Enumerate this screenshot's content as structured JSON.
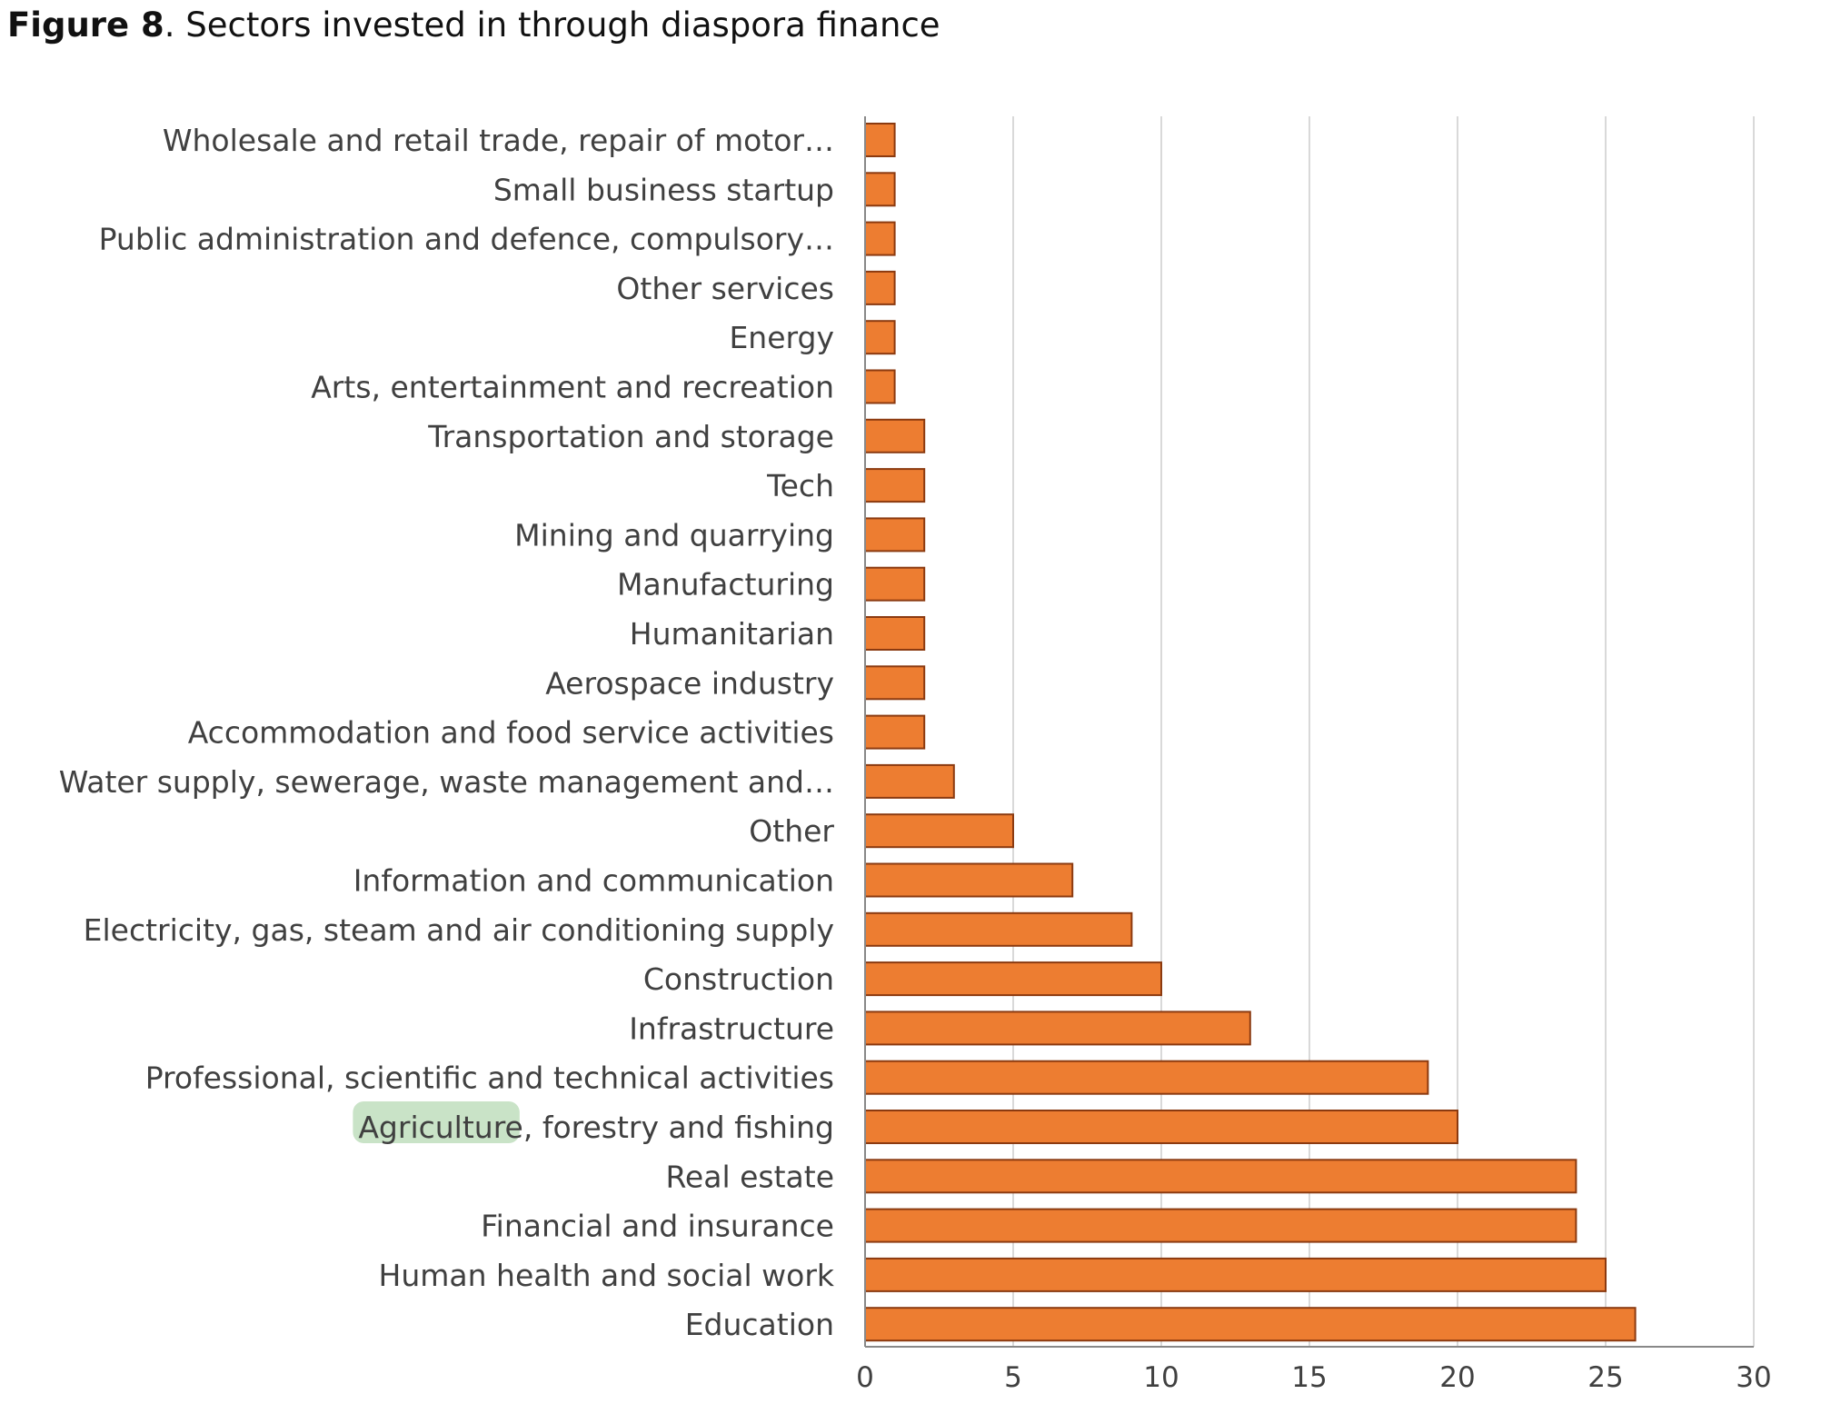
{
  "figure": {
    "label": "Figure 8",
    "caption": ". Sectors invested in through diaspora finance"
  },
  "chart_data": {
    "type": "bar",
    "orientation": "horizontal",
    "categories": [
      "Wholesale and retail trade, repair of motor…",
      "Small business startup",
      "Public administration and defence, compulsory…",
      "Other services",
      "Energy",
      "Arts, entertainment and recreation",
      "Transportation and storage",
      "Tech",
      "Mining and quarrying",
      "Manufacturing",
      "Humanitarian",
      "Aerospace industry",
      "Accommodation and food service activities",
      "Water supply, sewerage, waste management and…",
      "Other",
      "Information and communication",
      "Electricity, gas, steam and air conditioning supply",
      "Construction",
      "Infrastructure",
      "Professional, scientific and technical activities",
      "Agriculture, forestry and fishing",
      "Real estate",
      "Financial and insurance",
      "Human health and social work",
      "Education"
    ],
    "values": [
      1,
      1,
      1,
      1,
      1,
      1,
      2,
      2,
      2,
      2,
      2,
      2,
      2,
      3,
      5,
      7,
      9,
      10,
      13,
      19,
      20,
      24,
      24,
      25,
      26
    ],
    "xlim": [
      0,
      30
    ],
    "xticks": [
      "0",
      "5",
      "10",
      "15",
      "20",
      "25",
      "30"
    ],
    "grid": "vertical",
    "legend": "none",
    "colors": {
      "bar_fill": "#ED7D31",
      "bar_stroke": "#8B3A10",
      "grid": "#D9D9D9",
      "axis": "#888888",
      "label": "#404040",
      "highlight": "#C9E3C7"
    },
    "highlight": {
      "category_index": 20,
      "text": "Agriculture"
    }
  }
}
